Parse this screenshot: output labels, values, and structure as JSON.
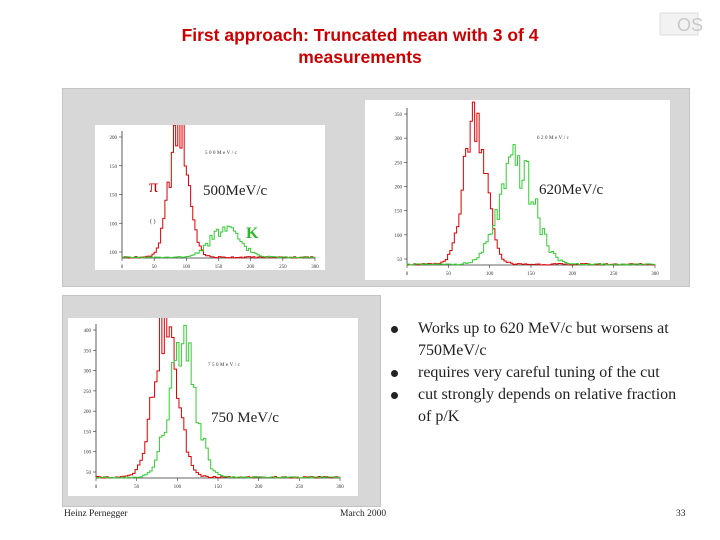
{
  "slide": {
    "title": "First approach: Truncated mean with 3 of 4 measurements",
    "logo_text": "OS",
    "footer": {
      "author": "Heinz Pernegger",
      "date": "March 2000",
      "page": "33"
    },
    "bullets": [
      "Works up to 620 MeV/c but worsens at 750MeV/c",
      "requires very careful tuning of the cut",
      "cut strongly depends on relative fraction of p/K"
    ]
  },
  "plots": {
    "p500": {
      "big_label": "500MeV/c",
      "small_label": "500MeV/c",
      "pi_label": "π",
      "k_label": "K",
      "misc_label": "(  )",
      "x_ticks": [
        "0",
        "50",
        "100",
        "150",
        "200",
        "250",
        "300"
      ],
      "y_ticks": [
        "200",
        "150",
        "150",
        "100",
        "100"
      ]
    },
    "p620": {
      "big_label": "620MeV/c",
      "small_label": "620MeV/c",
      "x_ticks": [
        "0",
        "50",
        "100",
        "150",
        "200",
        "250",
        "300"
      ],
      "y_ticks": [
        "350",
        "300",
        "250",
        "200",
        "150",
        "100",
        "50"
      ]
    },
    "p750": {
      "big_label": "750 MeV/c",
      "small_label": "750MeV/c",
      "x_ticks": [
        "0",
        "50",
        "100",
        "150",
        "200",
        "250",
        "300"
      ],
      "y_ticks": [
        "400",
        "350",
        "300",
        "250",
        "200",
        "150",
        "100",
        "50"
      ]
    }
  },
  "colors": {
    "title": "#cc0000",
    "pion_histogram": "#dd0000",
    "kaon_histogram": "#33cc33"
  }
}
